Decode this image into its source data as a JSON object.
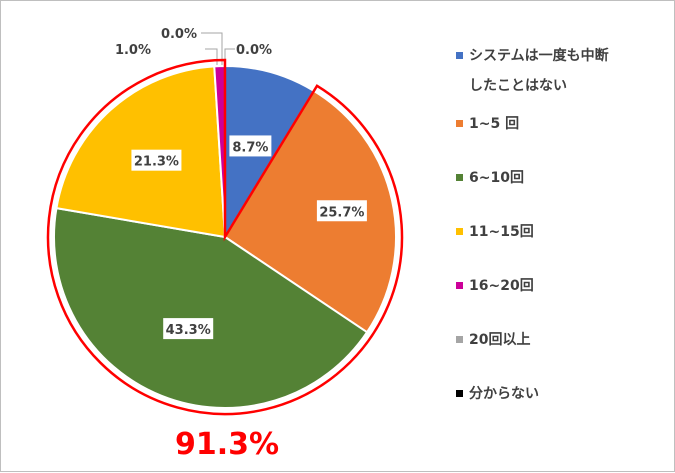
{
  "chart_data": {
    "type": "pie",
    "title": "",
    "categories": [
      "システムは一度も中断したことはない",
      "1~5 回",
      "6~10回",
      "11~15回",
      "16~20回",
      "20回以上",
      "分からない"
    ],
    "values": [
      8.7,
      25.7,
      43.3,
      21.3,
      1.0,
      0.0,
      0.0
    ],
    "value_labels": [
      "8.7%",
      "25.7%",
      "43.3%",
      "21.3%",
      "1.0%",
      "0.0%",
      "0.0%"
    ],
    "colors": [
      "#4472c4",
      "#ed7d31",
      "#548235",
      "#ffc000",
      "#cc0099",
      "#a5a5a5",
      "#000000"
    ],
    "legend_labels": [
      "システムは一度も中断\nしたことはない",
      "1~5 回",
      "6~10回",
      "11~15回",
      "16~20回",
      "20回以上",
      "分からない"
    ],
    "legend_position": "right",
    "highlight": {
      "text": "91.3%",
      "color": "#ff0000",
      "covers": [
        "1~5 回",
        "6~10回",
        "11~15回",
        "16~20回",
        "20回以上"
      ]
    }
  }
}
